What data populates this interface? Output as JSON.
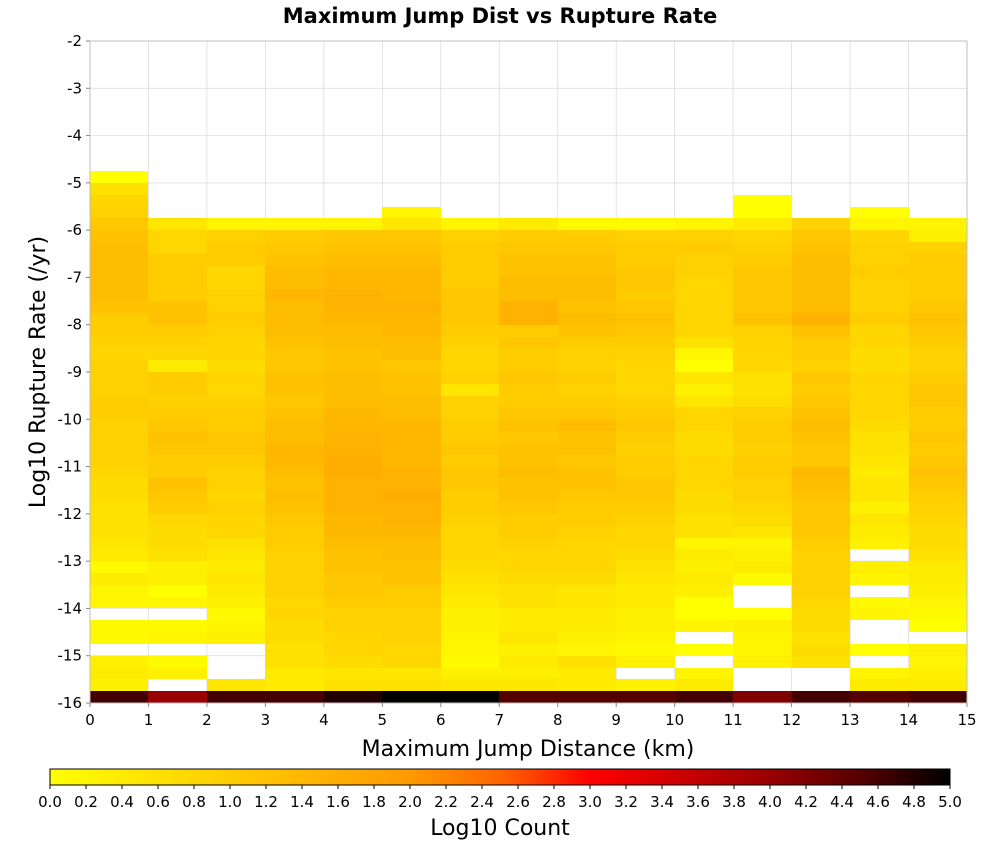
{
  "chart_data": {
    "type": "heatmap",
    "title": "Maximum Jump Dist vs Rupture Rate",
    "xlabel": "Maximum Jump Distance (km)",
    "ylabel": "Log10 Rupture Rate (/yr)",
    "xlim": [
      0,
      15
    ],
    "ylim": [
      -16,
      -2
    ],
    "x_ticks": [
      "0",
      "1",
      "2",
      "3",
      "4",
      "5",
      "6",
      "7",
      "8",
      "9",
      "10",
      "11",
      "12",
      "13",
      "14",
      "15"
    ],
    "y_ticks": [
      "-2",
      "-3",
      "-4",
      "-5",
      "-6",
      "-7",
      "-8",
      "-9",
      "-10",
      "-11",
      "-12",
      "-13",
      "-14",
      "-15",
      "-16"
    ],
    "x_bin_width": 1,
    "y_bin_height": 0.25,
    "y_bins_start": -16,
    "grid": true,
    "colorbar": {
      "label": "Log10 Count",
      "range": [
        0,
        5
      ],
      "ticks": [
        "0.0",
        "0.2",
        "0.4",
        "0.6",
        "0.8",
        "1.0",
        "1.2",
        "1.4",
        "1.6",
        "1.8",
        "2.0",
        "2.2",
        "2.4",
        "2.6",
        "2.8",
        "3.0",
        "3.2",
        "3.4",
        "3.6",
        "3.8",
        "4.0",
        "4.2",
        "4.4",
        "4.6",
        "4.8",
        "5.0"
      ],
      "colors": [
        "#ffff00",
        "#ffe600",
        "#ffcc00",
        "#ffb300",
        "#ff9900",
        "#ff6600",
        "#ff0000",
        "#cc0000",
        "#990000",
        "#550000",
        "#000000"
      ],
      "placement": "bottom"
    },
    "values": [
      [
        4.6,
        4.0,
        4.6,
        4.6,
        4.8,
        5.0,
        5.0,
        4.5,
        4.5,
        4.5,
        4.6,
        4.2,
        4.6,
        4.5,
        4.6
      ],
      [
        0.3,
        null,
        0.5,
        0.4,
        0.6,
        0.6,
        0.5,
        0.5,
        0.4,
        0.3,
        0.4,
        null,
        null,
        0.4,
        0.4
      ],
      [
        0.4,
        0.3,
        null,
        0.4,
        0.5,
        0.5,
        0.3,
        0.3,
        0.4,
        null,
        0.2,
        null,
        null,
        0.2,
        0.3
      ],
      [
        0.3,
        0.1,
        null,
        0.6,
        0.7,
        0.8,
        0.1,
        0.4,
        0.6,
        0.3,
        null,
        0.3,
        0.6,
        null,
        0.2
      ],
      [
        null,
        null,
        null,
        0.6,
        0.8,
        0.8,
        0.2,
        0.3,
        0.2,
        0.1,
        0.0,
        0.2,
        0.7,
        0.0,
        0.3
      ],
      [
        0.1,
        0.2,
        0.3,
        0.7,
        0.8,
        0.9,
        0.2,
        0.5,
        0.3,
        0.2,
        null,
        0.2,
        0.6,
        null,
        null
      ],
      [
        0.1,
        0.1,
        0.2,
        0.7,
        0.9,
        0.9,
        0.3,
        0.4,
        0.4,
        0.3,
        0.2,
        0.3,
        0.7,
        null,
        0.0
      ],
      [
        null,
        null,
        0.1,
        0.8,
        0.9,
        0.9,
        0.3,
        0.4,
        0.4,
        0.3,
        0.0,
        0.0,
        0.7,
        0.2,
        0.1
      ],
      [
        0.2,
        0.2,
        0.3,
        0.8,
        1.0,
        1.0,
        0.4,
        0.6,
        0.5,
        0.4,
        0.0,
        null,
        0.8,
        0.1,
        0.2
      ],
      [
        0.2,
        0.0,
        0.4,
        0.9,
        1.1,
        1.0,
        0.5,
        0.6,
        0.5,
        0.4,
        0.3,
        null,
        0.9,
        null,
        0.3
      ],
      [
        0.4,
        0.3,
        0.5,
        0.9,
        1.1,
        1.2,
        0.6,
        0.7,
        0.7,
        0.5,
        0.4,
        0.1,
        0.9,
        0.2,
        0.4
      ],
      [
        0.1,
        0.3,
        0.4,
        0.9,
        1.2,
        1.2,
        0.7,
        0.8,
        0.8,
        0.6,
        0.3,
        0.4,
        0.9,
        0.3,
        0.4
      ],
      [
        0.4,
        0.6,
        0.5,
        0.9,
        1.2,
        1.3,
        0.8,
        0.8,
        0.8,
        0.7,
        0.4,
        0.3,
        0.9,
        null,
        0.6
      ],
      [
        0.5,
        0.7,
        0.6,
        1.0,
        1.3,
        1.3,
        0.8,
        0.9,
        0.8,
        0.8,
        0.2,
        0.2,
        1.0,
        0.3,
        0.7
      ],
      [
        0.6,
        0.7,
        0.8,
        1.0,
        1.4,
        1.4,
        0.8,
        1.0,
        0.9,
        0.8,
        0.6,
        0.5,
        1.1,
        0.4,
        0.7
      ],
      [
        0.6,
        0.8,
        0.8,
        1.1,
        1.4,
        1.5,
        0.9,
        1.0,
        1.0,
        0.9,
        0.6,
        0.7,
        1.1,
        0.5,
        0.8
      ],
      [
        0.6,
        1.0,
        0.9,
        1.2,
        1.5,
        1.5,
        1.0,
        1.1,
        1.0,
        1.0,
        0.7,
        0.8,
        1.1,
        0.3,
        0.9
      ],
      [
        0.7,
        1.1,
        0.8,
        1.3,
        1.5,
        1.6,
        1.0,
        1.2,
        1.1,
        1.1,
        0.7,
        0.9,
        1.2,
        0.5,
        1.0
      ],
      [
        0.7,
        1.2,
        0.9,
        1.2,
        1.5,
        1.5,
        1.1,
        1.2,
        1.2,
        1.1,
        0.8,
        0.9,
        1.3,
        0.5,
        1.1
      ],
      [
        0.8,
        1.0,
        0.9,
        1.3,
        1.6,
        1.5,
        1.1,
        1.3,
        1.2,
        1.0,
        0.8,
        1.0,
        1.4,
        0.4,
        1.2
      ],
      [
        0.9,
        1.0,
        1.0,
        1.4,
        1.6,
        1.4,
        1.0,
        1.2,
        1.1,
        1.0,
        0.8,
        1.0,
        1.1,
        0.5,
        1.1
      ],
      [
        0.9,
        1.1,
        1.1,
        1.4,
        1.5,
        1.4,
        1.1,
        1.2,
        1.2,
        0.9,
        0.7,
        0.9,
        1.1,
        0.6,
        1.0
      ],
      [
        0.9,
        1.2,
        1.1,
        1.3,
        1.5,
        1.4,
        1.0,
        1.1,
        1.2,
        1.0,
        0.7,
        1.0,
        1.2,
        0.6,
        1.1
      ],
      [
        0.9,
        1.1,
        1.0,
        1.3,
        1.4,
        1.4,
        1.0,
        1.2,
        1.3,
        1.1,
        0.8,
        1.0,
        1.3,
        0.7,
        1.0
      ],
      [
        1.0,
        1.0,
        1.0,
        1.2,
        1.4,
        1.3,
        0.9,
        1.1,
        1.1,
        1.0,
        0.8,
        0.9,
        1.2,
        0.8,
        1.0
      ],
      [
        1.0,
        0.9,
        0.9,
        1.1,
        1.3,
        1.3,
        0.9,
        1.0,
        1.0,
        0.9,
        0.5,
        0.7,
        1.1,
        0.8,
        1.1
      ],
      [
        0.9,
        1.0,
        0.8,
        1.2,
        1.3,
        1.2,
        0.5,
        1.0,
        0.9,
        0.8,
        0.3,
        0.6,
        1.0,
        0.8,
        1.1
      ],
      [
        0.9,
        1.0,
        0.8,
        1.2,
        1.3,
        1.2,
        0.9,
        1.1,
        1.0,
        0.8,
        0.5,
        0.6,
        1.1,
        0.8,
        1.0
      ],
      [
        0.9,
        0.4,
        0.7,
        1.1,
        1.2,
        1.1,
        0.8,
        1.0,
        0.9,
        0.8,
        0.0,
        0.8,
        0.9,
        0.7,
        0.9
      ],
      [
        0.8,
        0.8,
        0.8,
        1.1,
        1.2,
        1.3,
        0.8,
        1.0,
        0.9,
        0.9,
        0.2,
        0.8,
        1.0,
        0.7,
        0.9
      ],
      [
        0.9,
        0.9,
        0.8,
        1.2,
        1.3,
        1.3,
        0.9,
        1.1,
        1.0,
        1.0,
        0.6,
        0.8,
        1.0,
        0.8,
        1.0
      ],
      [
        1.0,
        1.0,
        0.9,
        1.3,
        1.3,
        1.4,
        1.0,
        1.0,
        1.2,
        1.1,
        0.8,
        0.9,
        1.2,
        0.8,
        1.1
      ],
      [
        1.0,
        1.2,
        1.0,
        1.3,
        1.4,
        1.4,
        1.1,
        1.5,
        1.3,
        1.2,
        0.8,
        1.2,
        1.5,
        1.0,
        1.2
      ],
      [
        1.2,
        1.2,
        0.9,
        1.3,
        1.5,
        1.5,
        1.1,
        1.5,
        1.2,
        1.1,
        0.8,
        1.1,
        1.3,
        0.9,
        1.1
      ],
      [
        1.3,
        1.0,
        0.9,
        1.4,
        1.5,
        1.4,
        1.1,
        1.3,
        1.3,
        1.0,
        0.8,
        1.1,
        1.3,
        0.9,
        1.0
      ],
      [
        1.3,
        1.0,
        0.8,
        1.3,
        1.4,
        1.4,
        1.0,
        1.3,
        1.3,
        1.1,
        0.8,
        1.1,
        1.3,
        0.9,
        1.0
      ],
      [
        1.3,
        1.0,
        0.8,
        1.3,
        1.4,
        1.4,
        1.0,
        1.2,
        1.2,
        1.1,
        0.9,
        1.1,
        1.3,
        1.0,
        1.0
      ],
      [
        1.3,
        1.0,
        1.0,
        1.2,
        1.3,
        1.3,
        1.0,
        1.2,
        1.2,
        1.0,
        0.9,
        1.0,
        1.3,
        0.9,
        1.0
      ],
      [
        1.3,
        0.8,
        1.0,
        1.1,
        1.2,
        1.2,
        1.0,
        1.1,
        1.1,
        1.0,
        1.0,
        0.9,
        1.2,
        0.9,
        0.9
      ],
      [
        1.2,
        0.8,
        0.9,
        1.0,
        1.1,
        1.1,
        0.9,
        1.0,
        1.0,
        0.9,
        0.9,
        0.8,
        1.1,
        0.8,
        0.3
      ],
      [
        1.1,
        0.5,
        0.2,
        0.2,
        0.2,
        0.5,
        0.2,
        0.4,
        0.1,
        0.1,
        0.2,
        0.4,
        0.9,
        0.2,
        0.2
      ],
      [
        0.9,
        null,
        null,
        null,
        null,
        0.2,
        null,
        null,
        null,
        null,
        null,
        0.0,
        null,
        0.0,
        null
      ],
      [
        0.8,
        null,
        null,
        null,
        null,
        null,
        null,
        null,
        null,
        null,
        null,
        0.0,
        null,
        null,
        null
      ],
      [
        0.6,
        null,
        null,
        null,
        null,
        null,
        null,
        null,
        null,
        null,
        null,
        null,
        null,
        null,
        null
      ],
      [
        0.0,
        null,
        null,
        null,
        null,
        null,
        null,
        null,
        null,
        null,
        null,
        null,
        null,
        null,
        null
      ]
    ]
  }
}
